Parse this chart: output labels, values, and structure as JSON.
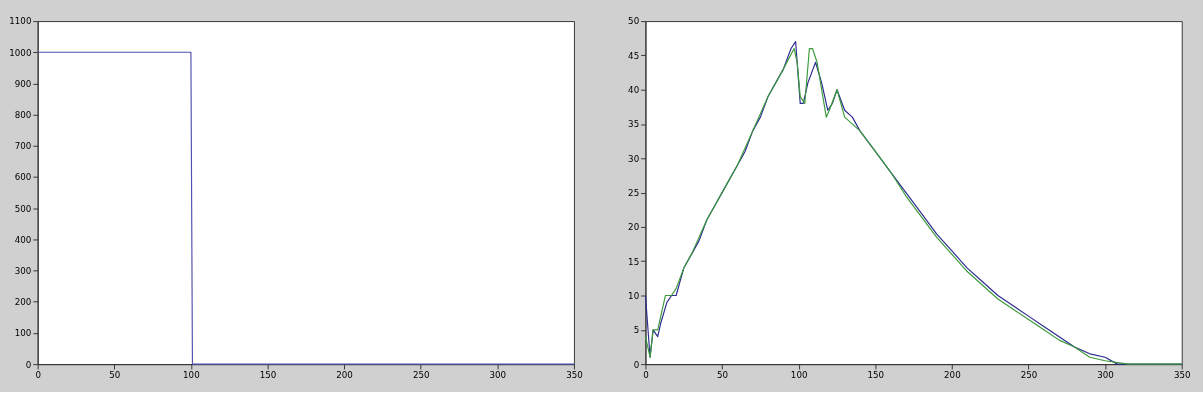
{
  "chart_data": [
    {
      "type": "line",
      "x": [
        0,
        100,
        101,
        350
      ],
      "xlim": [
        0,
        350
      ],
      "xticks": [
        0,
        50,
        100,
        150,
        200,
        250,
        300,
        350
      ],
      "ylim": [
        0,
        1100
      ],
      "yticks": [
        0,
        100,
        200,
        300,
        400,
        500,
        600,
        700,
        800,
        900,
        1000,
        1100
      ],
      "grid": false,
      "series": [
        {
          "color": "#5050b0",
          "values": [
            1000,
            1000,
            0,
            0
          ]
        }
      ]
    },
    {
      "type": "line",
      "xlim": [
        0,
        350
      ],
      "xticks": [
        0,
        50,
        100,
        150,
        200,
        250,
        300,
        350
      ],
      "ylim": [
        0,
        50
      ],
      "yticks": [
        0,
        5,
        10,
        15,
        20,
        25,
        30,
        35,
        40,
        45,
        50
      ],
      "grid": false,
      "series": [
        {
          "color": "#2a2a90",
          "x": [
            0,
            3,
            5,
            8,
            10,
            14,
            17,
            20,
            25,
            30,
            35,
            40,
            45,
            50,
            55,
            60,
            65,
            70,
            75,
            80,
            85,
            90,
            95,
            98,
            101,
            103,
            106,
            111,
            115,
            119,
            122,
            125,
            130,
            135,
            140,
            150,
            160,
            170,
            180,
            190,
            200,
            210,
            220,
            230,
            240,
            250,
            260,
            270,
            280,
            290,
            300,
            308,
            350
          ],
          "values": [
            10,
            1,
            5,
            4,
            6,
            9,
            10,
            10,
            14,
            16,
            18,
            21,
            23,
            25,
            27,
            29,
            31,
            34,
            36,
            39,
            41,
            43,
            46,
            47,
            38,
            38,
            41,
            44,
            41,
            37,
            38,
            40,
            37,
            36,
            34,
            31,
            28,
            25,
            22,
            19,
            16.5,
            14,
            12,
            10,
            8.5,
            7,
            5.5,
            4,
            2.5,
            1.5,
            1,
            0,
            0
          ]
        },
        {
          "color": "#3a9a3a",
          "x": [
            0,
            3,
            5,
            8,
            10,
            13,
            17,
            20,
            25,
            30,
            40,
            50,
            60,
            70,
            80,
            90,
            97,
            99,
            101,
            104,
            107,
            109,
            112,
            118,
            120,
            125,
            130,
            140,
            150,
            160,
            170,
            180,
            190,
            200,
            210,
            220,
            230,
            240,
            250,
            260,
            270,
            280,
            290,
            300,
            315,
            350
          ],
          "values": [
            4,
            1,
            5,
            5,
            7,
            10,
            10,
            11,
            14,
            16,
            21,
            25,
            29,
            34,
            39,
            43,
            46,
            44,
            39,
            38,
            46,
            46,
            44,
            36,
            37,
            40,
            36,
            34,
            31,
            28,
            24.5,
            21.5,
            18.5,
            16,
            13.5,
            11.5,
            9.5,
            8,
            6.5,
            5,
            3.5,
            2.5,
            1,
            0.5,
            0,
            0
          ]
        }
      ]
    }
  ]
}
